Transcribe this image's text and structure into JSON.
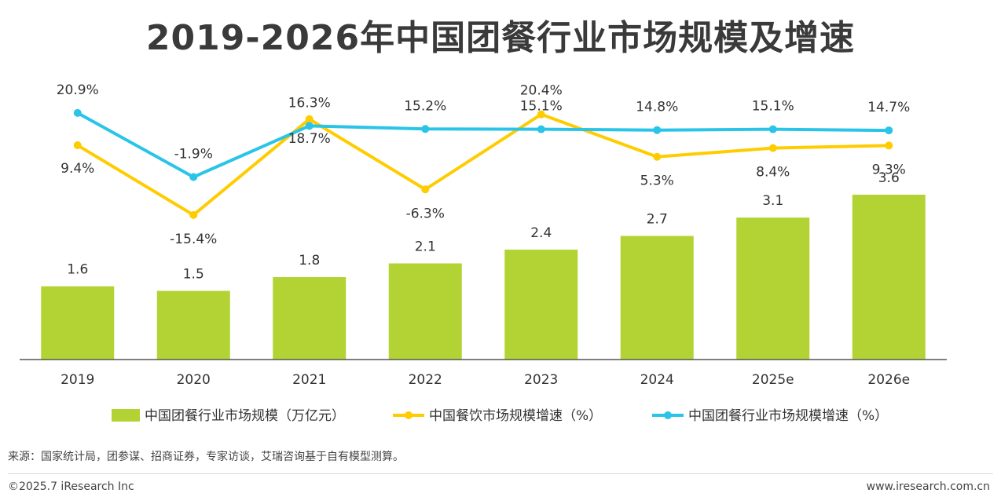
{
  "title": "2019-2026年中国团餐行业市场规模及增速",
  "chart_data": {
    "type": "bar",
    "categories": [
      "2019",
      "2020",
      "2021",
      "2022",
      "2023",
      "2024",
      "2025e",
      "2026e"
    ],
    "series": [
      {
        "name": "中国团餐行业市场规模（万亿元）",
        "kind": "bar",
        "color": "#b3d334",
        "values": [
          1.6,
          1.5,
          1.8,
          2.1,
          2.4,
          2.7,
          3.1,
          3.6
        ],
        "labels": [
          "1.6",
          "1.5",
          "1.8",
          "2.1",
          "2.4",
          "2.7",
          "3.1",
          "3.6"
        ]
      },
      {
        "name": "中国餐饮市场规模增速（%）",
        "kind": "line",
        "color": "#ffcc00",
        "values": [
          9.4,
          -15.4,
          18.7,
          -6.3,
          20.4,
          5.3,
          8.4,
          9.3
        ],
        "labels": [
          "9.4%",
          "-15.4%",
          "18.7%",
          "-6.3%",
          "20.4%",
          "5.3%",
          "8.4%",
          "9.3%"
        ]
      },
      {
        "name": "中国团餐行业市场规模增速（%）",
        "kind": "line",
        "color": "#29c4e8",
        "values": [
          20.9,
          -1.9,
          16.3,
          15.2,
          15.1,
          14.8,
          15.1,
          14.7
        ],
        "labels": [
          "20.9%",
          "-1.9%",
          "16.3%",
          "15.2%",
          "15.1%",
          "14.8%",
          "15.1%",
          "14.7%"
        ]
      }
    ],
    "bar_axis_range": [
      0,
      4.3
    ],
    "line_axis_range": [
      -22,
      22
    ],
    "grid": false,
    "legend_position": "bottom"
  },
  "source": "来源：国家统计局，团参谋、招商证券，专家访谈，艾瑞咨询基于自有模型测算。",
  "copyright": "©2025.7 iResearch Inc",
  "website": "www.iresearch.com.cn"
}
